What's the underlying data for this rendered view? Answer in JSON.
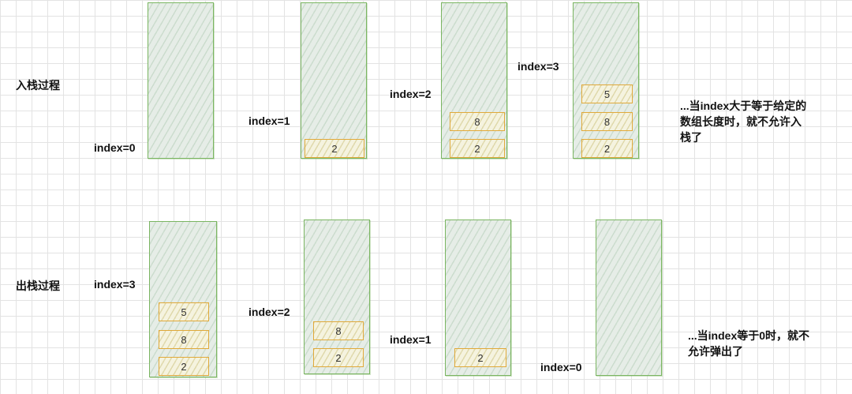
{
  "push_section": {
    "title": "入栈过程",
    "stacks": [
      {
        "index_label": "index=0",
        "values": []
      },
      {
        "index_label": "index=1",
        "values": [
          "2"
        ]
      },
      {
        "index_label": "index=2",
        "values": [
          "8",
          "2"
        ]
      },
      {
        "index_label": "index=3",
        "values": [
          "5",
          "8",
          "2"
        ]
      }
    ],
    "note_lines": [
      "...当index大于等于给定的",
      "数组长度时，就不允许入",
      "栈了"
    ]
  },
  "pop_section": {
    "title": "出栈过程",
    "stacks": [
      {
        "index_label": "index=3",
        "values": [
          "5",
          "8",
          "2"
        ]
      },
      {
        "index_label": "index=2",
        "values": [
          "8",
          "2"
        ]
      },
      {
        "index_label": "index=1",
        "values": [
          "2"
        ]
      },
      {
        "index_label": "index=0",
        "values": []
      }
    ],
    "note_lines": [
      "...当index等于0时，就不",
      "允许弹出了"
    ]
  }
}
